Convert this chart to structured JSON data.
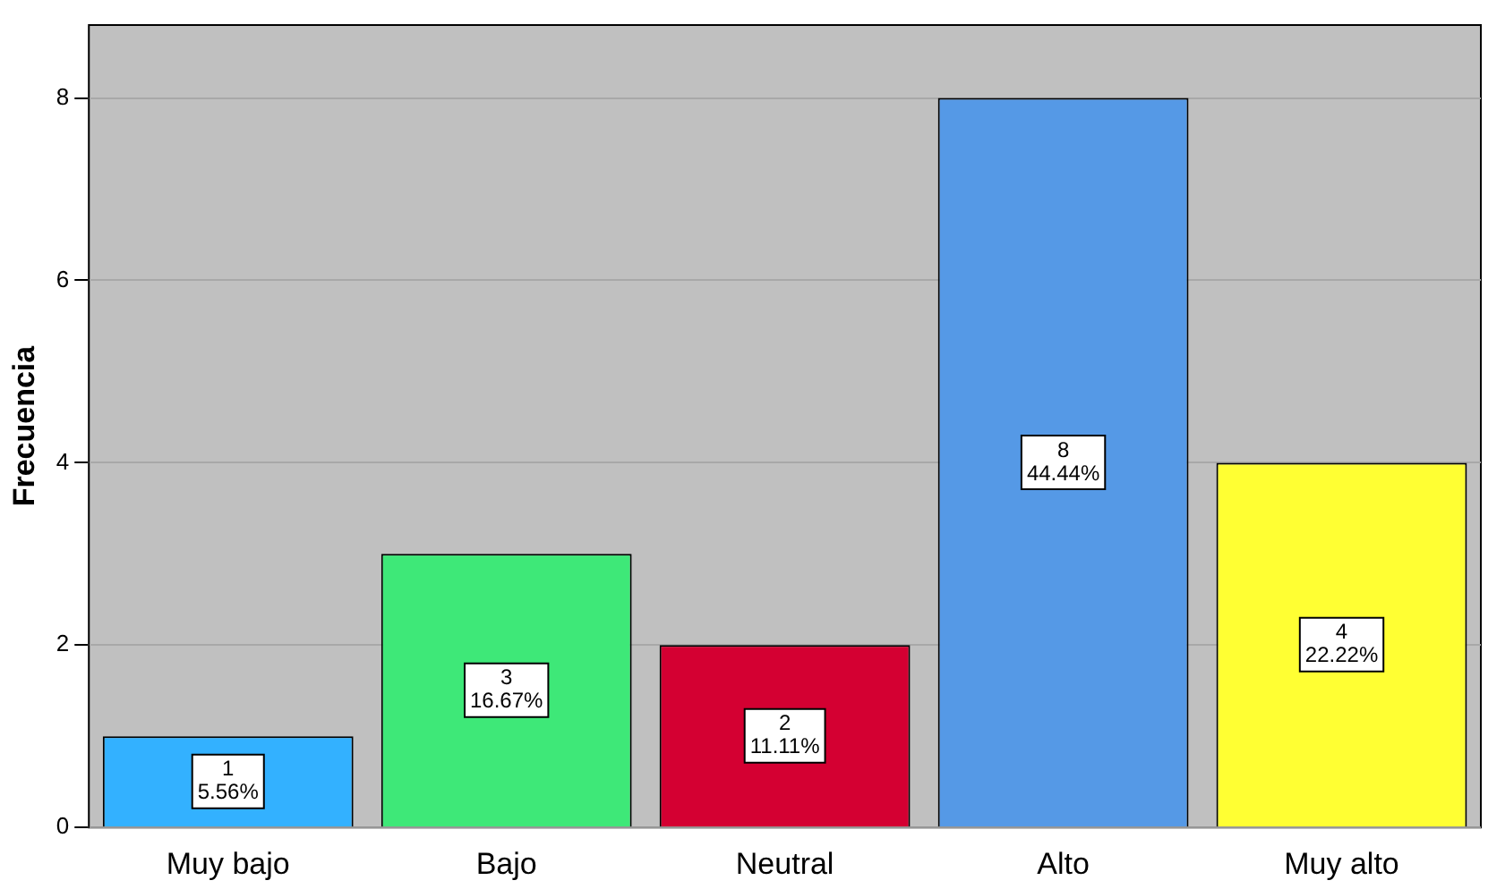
{
  "chart_data": {
    "type": "bar",
    "ylabel": "Frecuencia",
    "categories": [
      "Muy bajo",
      "Bajo",
      "Neutral",
      "Alto",
      "Muy alto"
    ],
    "values": [
      1,
      3,
      2,
      8,
      4
    ],
    "colors": [
      "#33b1ff",
      "#3ee878",
      "#d40032",
      "#5599e6",
      "#ffff33"
    ],
    "value_labels": [
      "1\n5.56%",
      "3\n16.67%",
      "2\n11.11%",
      "8\n44.44%",
      "4\n22.22%"
    ],
    "ylim": [
      0,
      8.8
    ],
    "yticks": [
      0,
      2,
      4,
      6,
      8
    ],
    "grid": "y"
  }
}
